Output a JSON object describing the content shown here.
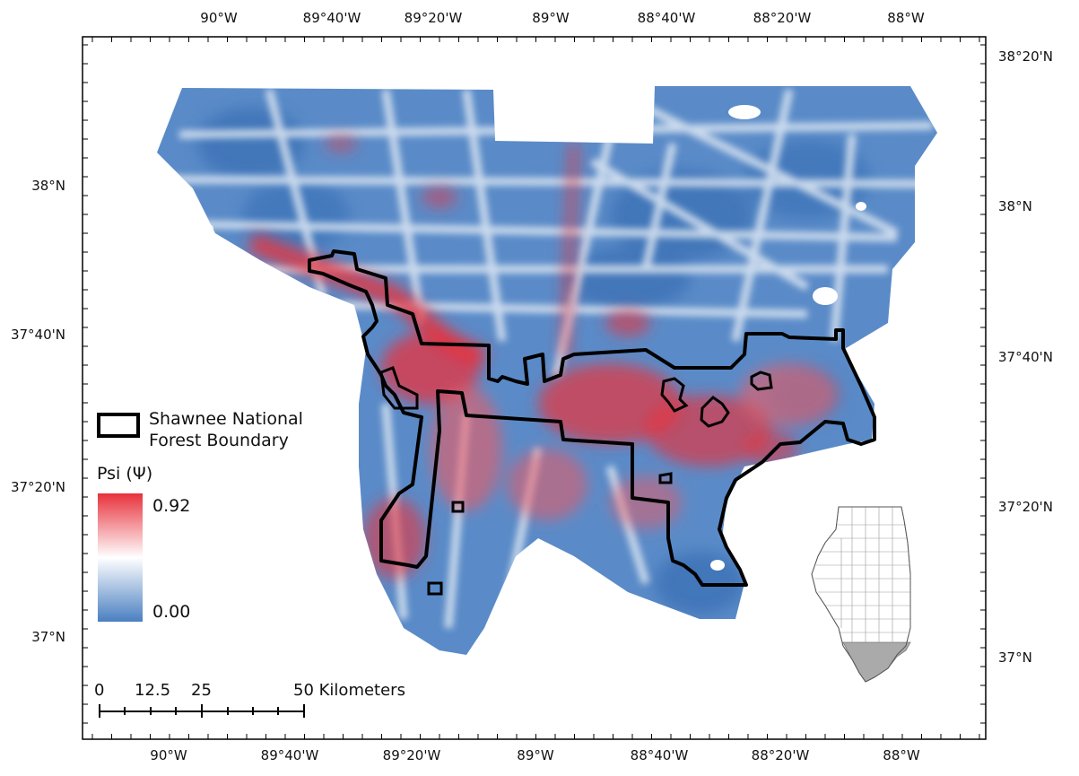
{
  "map": {
    "lon_labels": [
      "90°W",
      "89°40'W",
      "89°20'W",
      "89°W",
      "88°40'W",
      "88°20'W",
      "88°W"
    ],
    "lat_labels_left": [
      "38°N",
      "37°40'N",
      "37°20'N",
      "37°N"
    ],
    "lat_labels_right": [
      "38°20'N",
      "38°N",
      "37°40'N",
      "37°20'N",
      "37°N"
    ]
  },
  "legend": {
    "boundary_line1": "Shawnee National",
    "boundary_line2": "Forest Boundary",
    "psi_title": "Psi (Ψ)",
    "psi_max": "0.92",
    "psi_min": "0.00",
    "colors": {
      "high": "#e8323c",
      "mid": "#ffffff",
      "low": "#4a7fc1"
    }
  },
  "scale_bar": {
    "tick_0": "0",
    "tick_12_5": "12.5",
    "tick_25": "25",
    "tick_50": "50 Kilometers"
  }
}
